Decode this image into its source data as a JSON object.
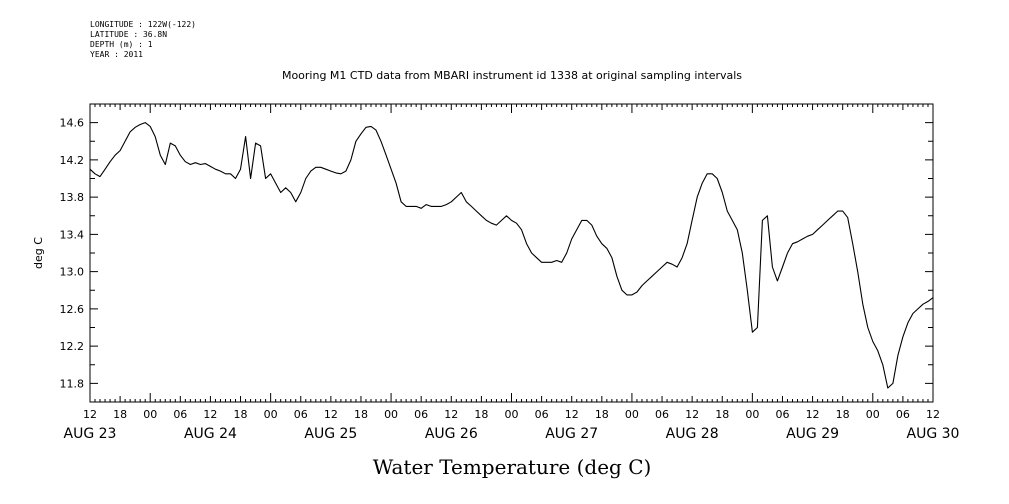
{
  "meta": {
    "longitude": "LONGITUDE : 122W(-122)",
    "latitude": "LATITUDE : 36.8N",
    "depth": "DEPTH (m) : 1",
    "year": "YEAR : 2011"
  },
  "chart_data": {
    "type": "line",
    "title": "Mooring M1 CTD data from MBARI instrument id 1338 at original sampling intervals",
    "xlabel": "Water Temperature (deg C)",
    "ylabel": "deg C",
    "xlim": [
      0,
      168
    ],
    "ylim": [
      11.6,
      14.8
    ],
    "yticks": [
      "11.8",
      "12.2",
      "12.6",
      "13.0",
      "13.4",
      "13.8",
      "14.2",
      "14.6"
    ],
    "xticks": [
      "12",
      "18",
      "00",
      "06",
      "12",
      "18",
      "00",
      "06",
      "12",
      "18",
      "00",
      "06",
      "12",
      "18",
      "00",
      "06",
      "12",
      "18",
      "00",
      "06",
      "12",
      "18",
      "00",
      "06",
      "12",
      "18",
      "00",
      "06",
      "12"
    ],
    "day_labels": [
      "AUG 23",
      "AUG 24",
      "AUG 25",
      "AUG 26",
      "AUG 27",
      "AUG 28",
      "AUG 29",
      "AUG 30"
    ],
    "series": [
      {
        "x": [
          0,
          1,
          2,
          3,
          4,
          5,
          6,
          7,
          8,
          9,
          10,
          11,
          12,
          13,
          14,
          15,
          16,
          17,
          18,
          19,
          20,
          21,
          22,
          23,
          24,
          25,
          26,
          27,
          28,
          29,
          30,
          31,
          32,
          33,
          34,
          35,
          36,
          37,
          38,
          39,
          40,
          41,
          42,
          43,
          44,
          45,
          46,
          47,
          48,
          49,
          50,
          51,
          52,
          53,
          54,
          55,
          56,
          57,
          58,
          59,
          60,
          61,
          62,
          63,
          64,
          65,
          66,
          67,
          68,
          69,
          70,
          71,
          72,
          73,
          74,
          75,
          76,
          77,
          78,
          79,
          80,
          81,
          82,
          83,
          84,
          85,
          86,
          87,
          88,
          89,
          90,
          91,
          92,
          93,
          94,
          95,
          96,
          97,
          98,
          99,
          100,
          101,
          102,
          103,
          104,
          105,
          106,
          107,
          108,
          109,
          110,
          111,
          112,
          113,
          114,
          115,
          116,
          117,
          118,
          119,
          120,
          121,
          122,
          123,
          124,
          125,
          126,
          127,
          128,
          129,
          130,
          131,
          132,
          133,
          134,
          135,
          136,
          137,
          138,
          139,
          140,
          141,
          142,
          143,
          144,
          145,
          146,
          147,
          148,
          149,
          150,
          151,
          152,
          153,
          154,
          155,
          156,
          157,
          158,
          159,
          160,
          161,
          162,
          163,
          164,
          165,
          166,
          167,
          168
        ],
        "y": [
          14.1,
          14.05,
          14.02,
          14.1,
          14.18,
          14.25,
          14.3,
          14.4,
          14.5,
          14.55,
          14.58,
          14.6,
          14.56,
          14.45,
          14.25,
          14.15,
          14.38,
          14.35,
          14.25,
          14.18,
          14.15,
          14.17,
          14.15,
          14.16,
          14.13,
          14.1,
          14.08,
          14.05,
          14.05,
          14.0,
          14.1,
          14.45,
          14.0,
          14.38,
          14.35,
          14.0,
          14.05,
          13.95,
          13.85,
          13.9,
          13.85,
          13.75,
          13.85,
          14.0,
          14.08,
          14.12,
          14.12,
          14.1,
          14.08,
          14.06,
          14.05,
          14.08,
          14.2,
          14.4,
          14.48,
          14.55,
          14.56,
          14.52,
          14.4,
          14.25,
          14.1,
          13.95,
          13.75,
          13.7,
          13.7,
          13.7,
          13.68,
          13.72,
          13.7,
          13.7,
          13.7,
          13.72,
          13.75,
          13.8,
          13.85,
          13.75,
          13.7,
          13.65,
          13.6,
          13.55,
          13.52,
          13.5,
          13.55,
          13.6,
          13.55,
          13.52,
          13.45,
          13.3,
          13.2,
          13.15,
          13.1,
          13.1,
          13.1,
          13.12,
          13.1,
          13.2,
          13.35,
          13.45,
          13.55,
          13.55,
          13.5,
          13.38,
          13.3,
          13.25,
          13.15,
          12.95,
          12.8,
          12.75,
          12.75,
          12.78,
          12.85,
          12.9,
          12.95,
          13.0,
          13.05,
          13.1,
          13.08,
          13.05,
          13.15,
          13.3,
          13.55,
          13.8,
          13.95,
          14.05,
          14.05,
          14.0,
          13.85,
          13.65,
          13.55,
          13.45,
          13.2,
          12.8,
          12.35,
          12.4,
          13.55,
          13.6,
          13.05,
          12.9,
          13.05,
          13.2,
          13.3,
          13.32,
          13.35,
          13.38,
          13.4,
          13.45,
          13.5,
          13.55,
          13.6,
          13.65,
          13.65,
          13.58,
          13.3,
          13.0,
          12.65,
          12.4,
          12.25,
          12.15,
          12.0,
          11.75,
          11.8,
          12.1,
          12.3,
          12.45,
          12.55,
          12.6,
          12.65,
          12.68,
          12.72
        ]
      }
    ]
  }
}
